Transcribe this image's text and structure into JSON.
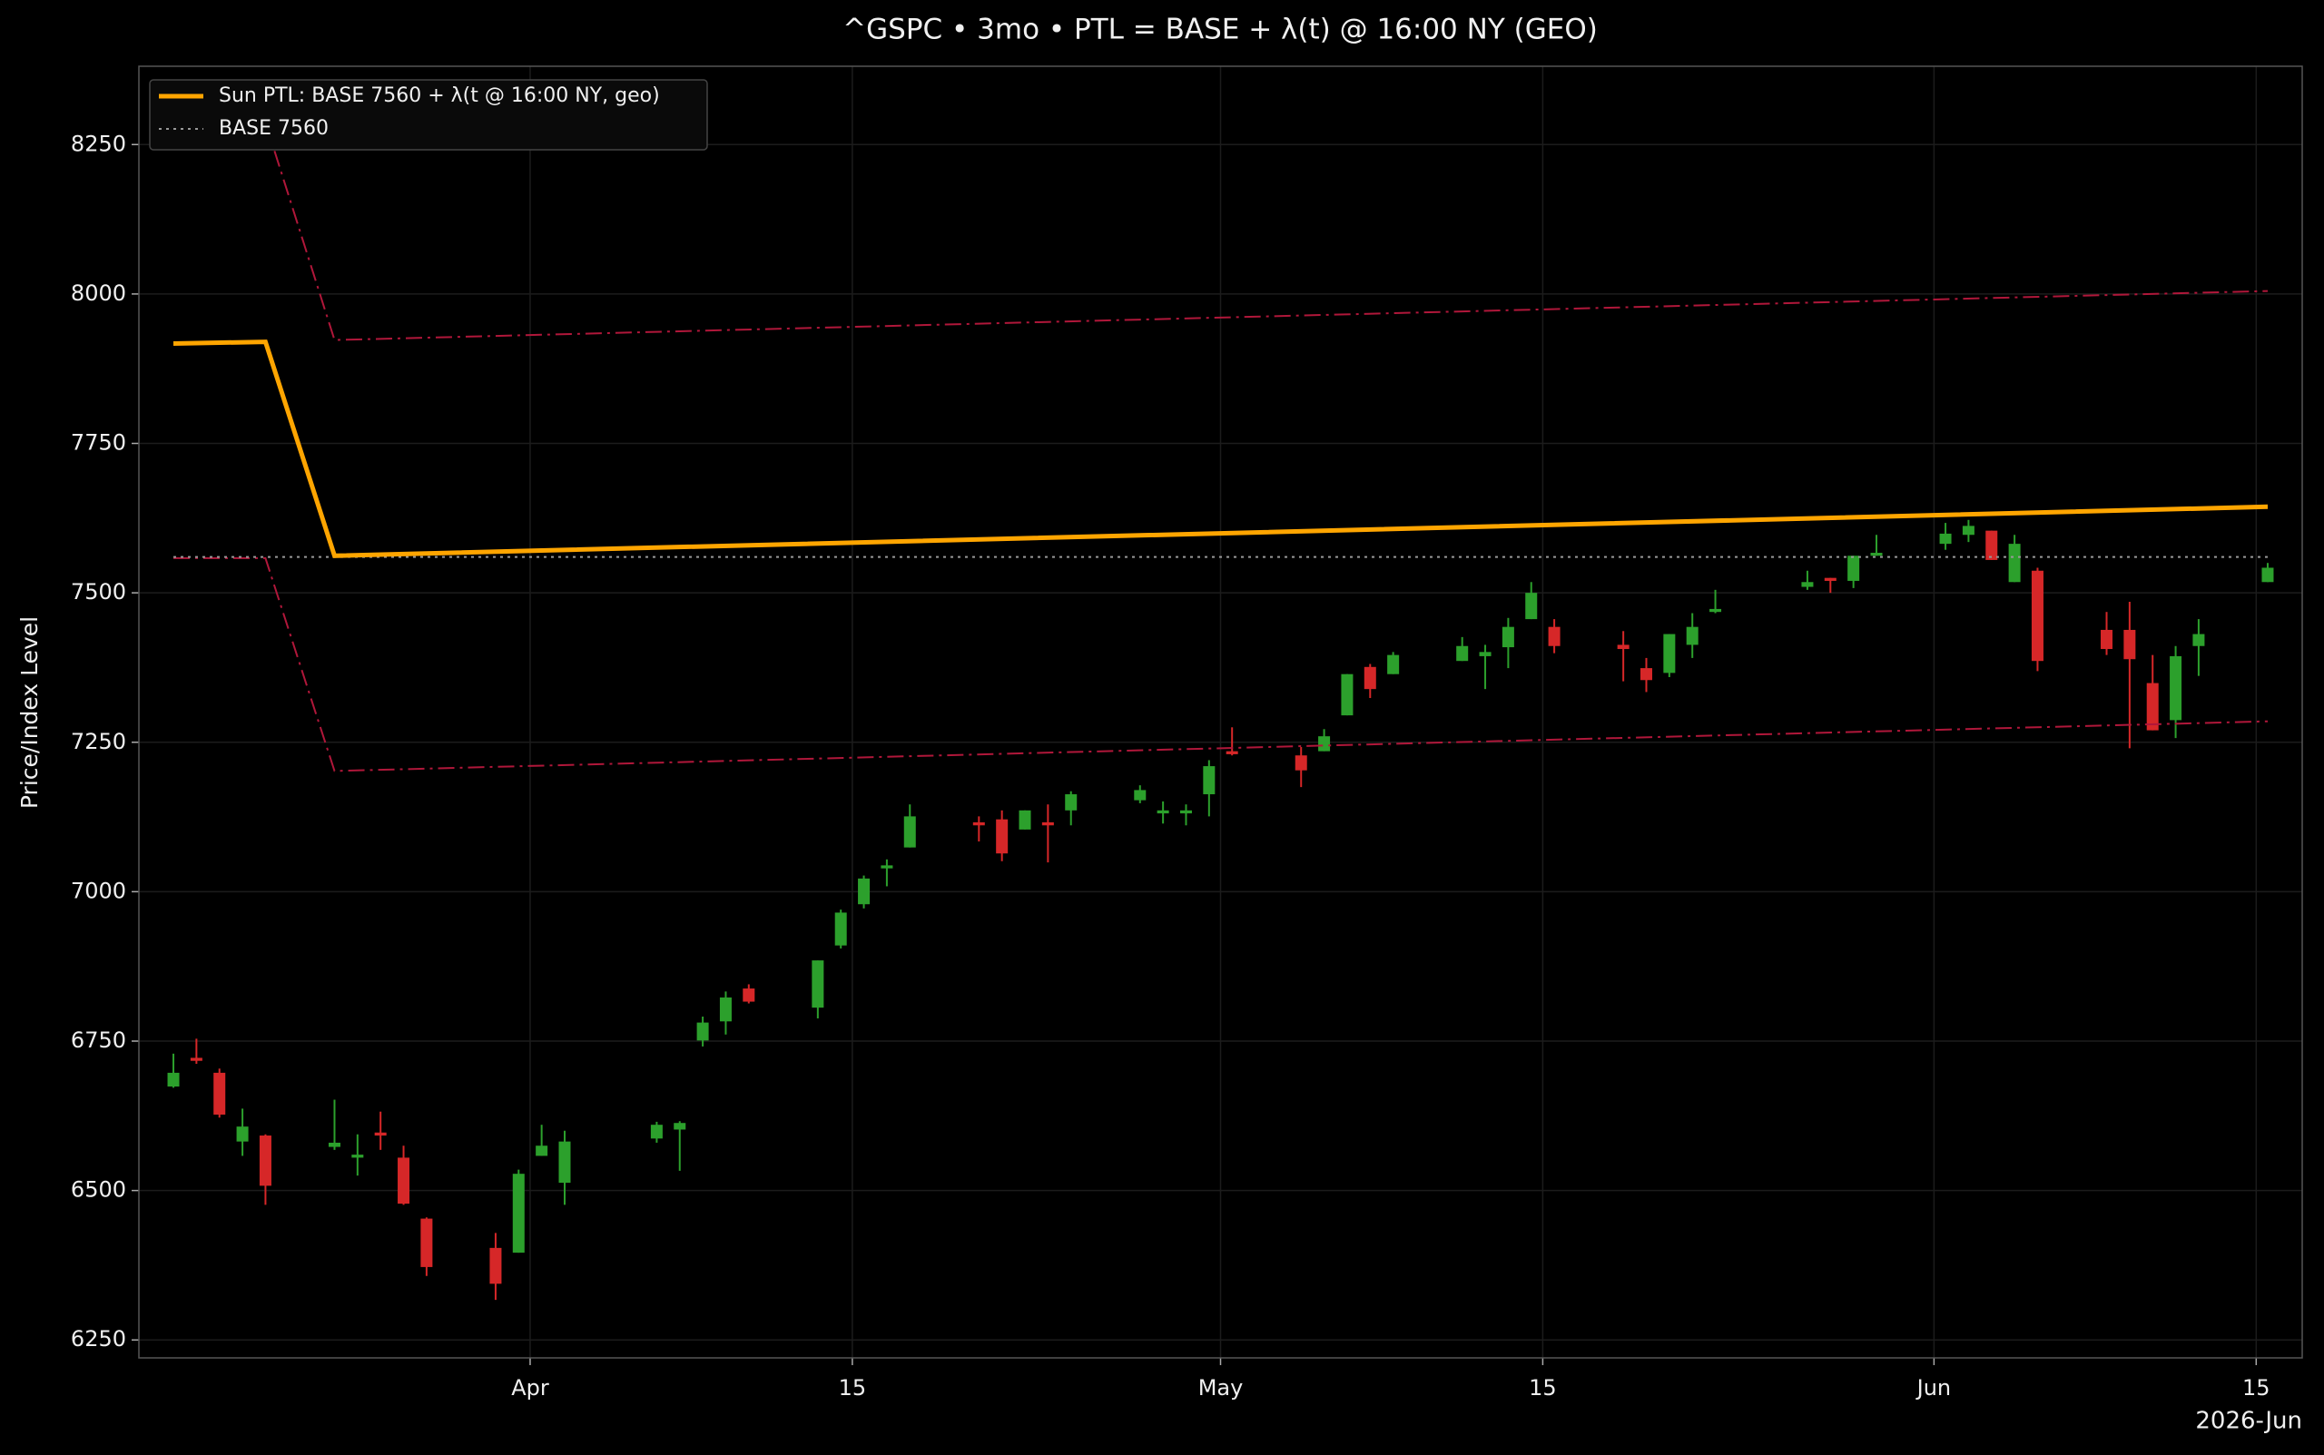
{
  "chart_data": {
    "type": "candlestick",
    "title": "^GSPC • 3mo • PTL = BASE + λ(t) @ 16:00 NY (GEO)",
    "y_label": "Price/Index Level",
    "x_offset_label": "2026-Jun",
    "x": [
      "2026-03-16",
      "2026-03-17",
      "2026-03-18",
      "2026-03-19",
      "2026-03-20",
      "2026-03-23",
      "2026-03-24",
      "2026-03-25",
      "2026-03-26",
      "2026-03-27",
      "2026-03-30",
      "2026-03-31",
      "2026-04-01",
      "2026-04-02",
      "2026-04-06",
      "2026-04-07",
      "2026-04-08",
      "2026-04-09",
      "2026-04-10",
      "2026-04-13",
      "2026-04-14",
      "2026-04-15",
      "2026-04-16",
      "2026-04-17",
      "2026-04-20",
      "2026-04-21",
      "2026-04-22",
      "2026-04-23",
      "2026-04-24",
      "2026-04-27",
      "2026-04-28",
      "2026-04-29",
      "2026-04-30",
      "2026-05-01",
      "2026-05-04",
      "2026-05-05",
      "2026-05-06",
      "2026-05-07",
      "2026-05-08",
      "2026-05-11",
      "2026-05-12",
      "2026-05-13",
      "2026-05-14",
      "2026-05-15",
      "2026-05-18",
      "2026-05-19",
      "2026-05-20",
      "2026-05-21",
      "2026-05-22",
      "2026-05-26",
      "2026-05-27",
      "2026-05-28",
      "2026-05-29",
      "2026-06-01",
      "2026-06-02",
      "2026-06-03",
      "2026-06-04",
      "2026-06-05",
      "2026-06-08",
      "2026-06-09",
      "2026-06-10",
      "2026-06-11",
      "2026-06-12",
      "2026-06-15"
    ],
    "open": [
      6674,
      6722,
      6697,
      6582,
      6592,
      6573,
      6555,
      6597,
      6555,
      6453,
      6404,
      6396,
      6558,
      6513,
      6587,
      6602,
      6751,
      6783,
      6838,
      6806,
      6910,
      6979,
      7039,
      7074,
      7116,
      7121,
      7104,
      7116,
      7136,
      7153,
      7131,
      7131,
      7163,
      7235,
      7228,
      7235,
      7295,
      7376,
      7364,
      7386,
      7394,
      7409,
      7456,
      7443,
      7413,
      7374,
      7366,
      7413,
      7468,
      7510,
      7525,
      7520,
      7562,
      7582,
      7597,
      7604,
      7518,
      7537,
      7438,
      7438,
      7349,
      7287,
      7411,
      7518
    ],
    "high": [
      6729,
      6754,
      6704,
      6637,
      6594,
      6652,
      6594,
      6632,
      6575,
      6455,
      6429,
      6535,
      6610,
      6600,
      6615,
      6616,
      6791,
      6833,
      6845,
      6885,
      6970,
      7027,
      7054,
      7146,
      7126,
      7136,
      7136,
      7146,
      7168,
      7178,
      7151,
      7146,
      7220,
      7275,
      7242,
      7272,
      7364,
      7381,
      7401,
      7426,
      7413,
      7458,
      7518,
      7456,
      7436,
      7391,
      7431,
      7466,
      7505,
      7537,
      7525,
      7562,
      7597,
      7617,
      7622,
      7604,
      7597,
      7542,
      7468,
      7485,
      7396,
      7411,
      7456,
      7550
    ],
    "low": [
      6672,
      6712,
      6622,
      6558,
      6476,
      6568,
      6525,
      6568,
      6476,
      6357,
      6317,
      6396,
      6558,
      6476,
      6580,
      6533,
      6741,
      6761,
      6813,
      6788,
      6905,
      6972,
      7009,
      7074,
      7084,
      7051,
      7104,
      7049,
      7111,
      7148,
      7114,
      7111,
      7126,
      7228,
      7175,
      7235,
      7295,
      7324,
      7364,
      7386,
      7339,
      7374,
      7456,
      7399,
      7352,
      7334,
      7359,
      7391,
      7466,
      7505,
      7500,
      7508,
      7562,
      7572,
      7585,
      7555,
      7518,
      7369,
      7396,
      7240,
      7270,
      7257,
      7361,
      7518
    ],
    "close": [
      6697,
      6717,
      6627,
      6607,
      6508,
      6580,
      6560,
      6592,
      6478,
      6372,
      6344,
      6528,
      6575,
      6582,
      6610,
      6613,
      6781,
      6823,
      6816,
      6885,
      6965,
      7022,
      7044,
      7126,
      7111,
      7064,
      7136,
      7111,
      7163,
      7170,
      7136,
      7136,
      7210,
      7230,
      7203,
      7260,
      7364,
      7339,
      7396,
      7411,
      7401,
      7443,
      7500,
      7411,
      7406,
      7354,
      7431,
      7443,
      7473,
      7518,
      7520,
      7562,
      7567,
      7599,
      7612,
      7555,
      7582,
      7386,
      7406,
      7389,
      7270,
      7394,
      7431,
      7542
    ],
    "up_color": "#2ca02c",
    "down_color": "#d62728",
    "lines": [
      {
        "name": "Sun PTL: BASE 7560 + λ(t @ 16:00 NY, geo)",
        "color": "#ffa500",
        "style": "solid",
        "x": [
          "2026-03-16",
          "2026-03-20",
          "2026-03-23",
          "2026-06-15"
        ],
        "values": [
          7917,
          7920,
          7562,
          7644
        ]
      },
      {
        "name": "BASE 7560",
        "color": "#999999",
        "style": "dotted",
        "x": [
          "2026-03-16",
          "2026-06-15"
        ],
        "values": [
          7560,
          7560
        ]
      }
    ],
    "bands": [
      {
        "color": "#b0173a",
        "style": "dashdot",
        "x": [
          "2026-03-20",
          "2026-03-23",
          "2026-06-15"
        ],
        "values": [
          8287,
          7923,
          8005
        ]
      },
      {
        "color": "#b0173a",
        "style": "dashdot",
        "x": [
          "2026-03-16",
          "2026-03-20",
          "2026-03-23",
          "2026-06-15"
        ],
        "values": [
          7558,
          7558,
          7202,
          7285
        ]
      }
    ],
    "xlim": [
      "2026-03-15",
      "2026-06-17"
    ],
    "xticks": [
      {
        "value": "2026-04-01",
        "label": "Apr"
      },
      {
        "value": "2026-04-15",
        "label": "15"
      },
      {
        "value": "2026-05-01",
        "label": "May"
      },
      {
        "value": "2026-05-15",
        "label": "15"
      },
      {
        "value": "2026-06-01",
        "label": "Jun"
      },
      {
        "value": "2026-06-15",
        "label": "15"
      }
    ],
    "ylim": [
      6220,
      8381
    ],
    "yticks": [
      6250,
      6500,
      6750,
      7000,
      7250,
      7500,
      7750,
      8000,
      8250
    ],
    "grid": true,
    "legend": "upper left"
  }
}
